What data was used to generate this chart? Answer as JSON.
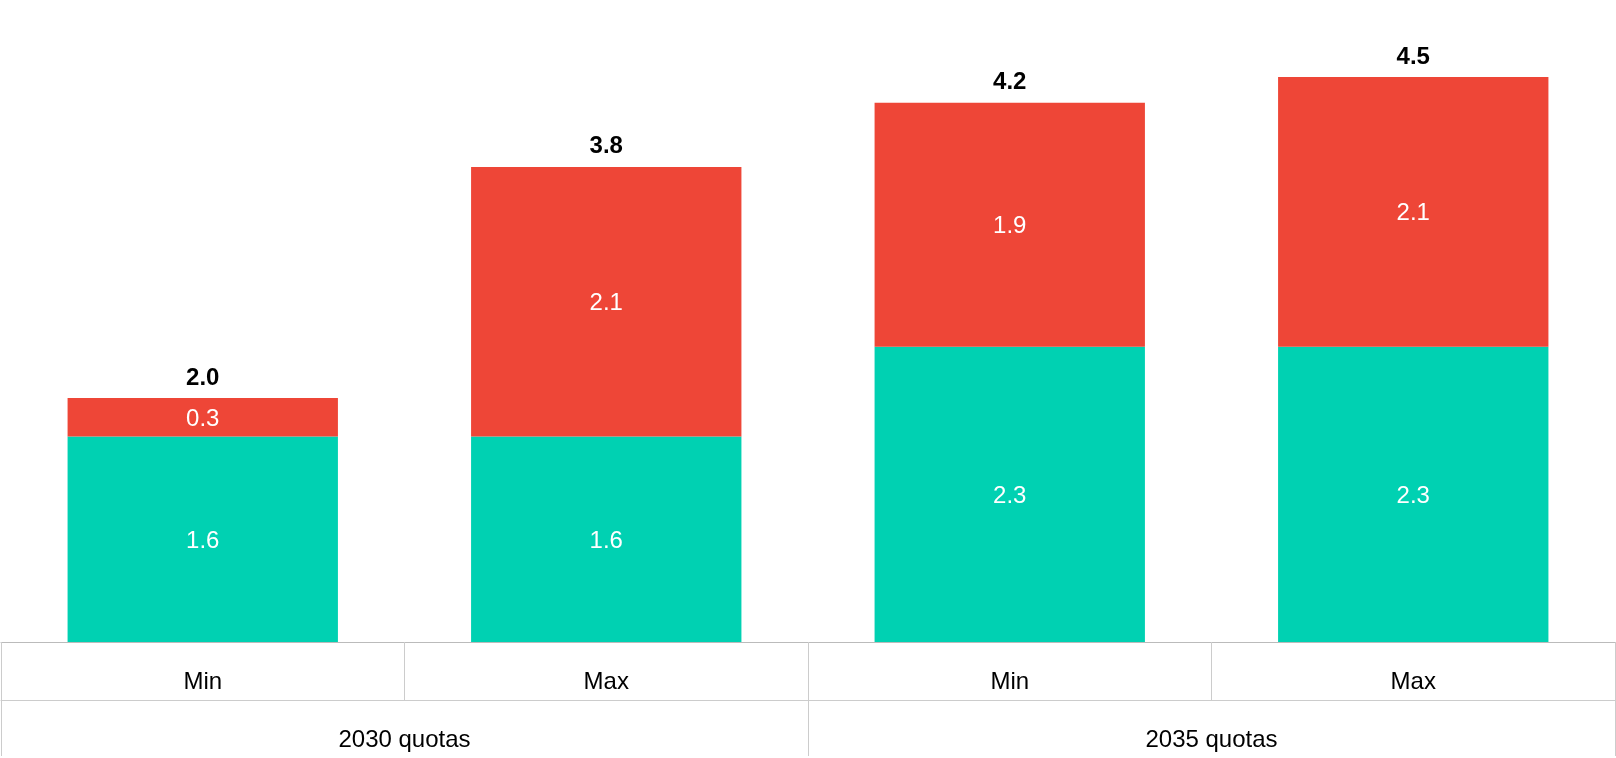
{
  "chart_data": {
    "type": "bar",
    "stacked": true,
    "data_labels": true,
    "categories": [
      "Min",
      "Max",
      "Min",
      "Max"
    ],
    "series": [
      {
        "color": "#00d1b2",
        "values": [
          1.6,
          1.6,
          2.3,
          2.3
        ]
      },
      {
        "color": "#ee4637",
        "values": [
          0.3,
          2.1,
          1.9,
          2.1
        ]
      }
    ],
    "totals": [
      "2.0",
      "3.8",
      "4.2",
      "4.5"
    ],
    "annotations": [
      "2030 quotas",
      "2035 quotas"
    ]
  }
}
